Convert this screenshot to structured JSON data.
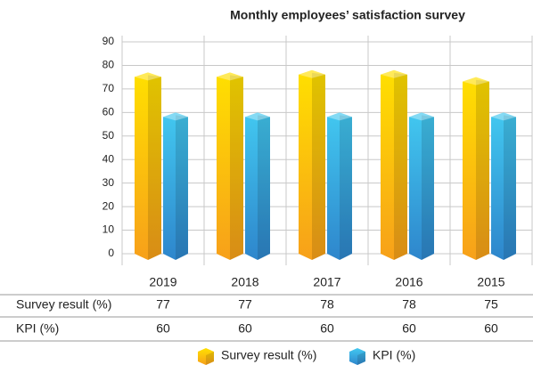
{
  "chart_data": {
    "type": "bar",
    "title": "Monthly employees’ satisfaction survey",
    "categories": [
      "2019",
      "2018",
      "2017",
      "2016",
      "2015"
    ],
    "series": [
      {
        "name": "Survey result (%)",
        "color": "#f9b414",
        "values": [
          77,
          77,
          78,
          78,
          75
        ]
      },
      {
        "name": "KPI (%)",
        "color": "#35a9e3",
        "values": [
          60,
          60,
          60,
          60,
          60
        ]
      }
    ],
    "ylim": [
      0,
      90
    ],
    "yticks": [
      0,
      10,
      20,
      30,
      40,
      50,
      60,
      70,
      80,
      90
    ],
    "grid": true
  }
}
